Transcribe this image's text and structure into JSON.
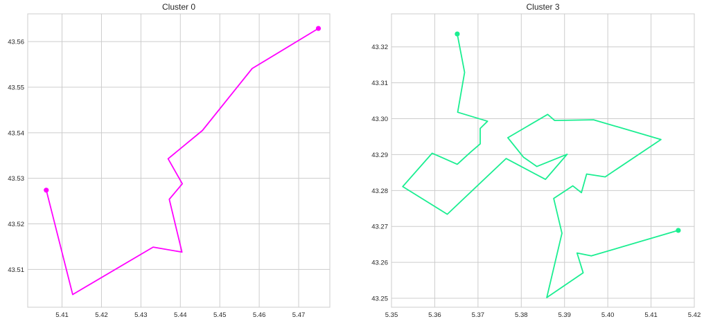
{
  "chart_data": [
    {
      "type": "line",
      "title": "Cluster 0",
      "xlabel": "",
      "ylabel": "",
      "color": "#ff00ff",
      "grid": true,
      "xlim": [
        5.4013,
        5.4779
      ],
      "ylim": [
        43.5017,
        43.5661
      ],
      "xticks": [
        5.41,
        5.42,
        5.43,
        5.44,
        5.45,
        5.46,
        5.47
      ],
      "yticks": [
        43.51,
        43.52,
        43.53,
        43.54,
        43.55,
        43.56
      ],
      "xtick_labels": [
        "5.41",
        "5.42",
        "5.43",
        "5.44",
        "5.45",
        "5.46",
        "5.47"
      ],
      "ytick_labels": [
        "43.51",
        "43.52",
        "43.53",
        "43.54",
        "43.55",
        "43.56"
      ],
      "x": [
        5.406,
        5.4127,
        5.4331,
        5.4404,
        5.4372,
        5.4405,
        5.4369,
        5.4456,
        5.4582,
        5.475
      ],
      "y": [
        43.5274,
        43.5045,
        43.5149,
        43.5138,
        43.5254,
        43.5288,
        43.5343,
        43.5405,
        43.5541,
        43.5629
      ],
      "markers": [
        {
          "x": 5.406,
          "y": 43.5274
        },
        {
          "x": 5.475,
          "y": 43.5629
        }
      ]
    },
    {
      "type": "line",
      "title": "Cluster 3",
      "xlabel": "",
      "ylabel": "",
      "color": "#1aee91",
      "grid": true,
      "xlim": [
        5.35,
        5.42
      ],
      "ylim": [
        43.2475,
        43.3292
      ],
      "xticks": [
        5.35,
        5.36,
        5.37,
        5.38,
        5.39,
        5.4,
        5.41,
        5.42
      ],
      "yticks": [
        43.25,
        43.26,
        43.27,
        43.28,
        43.29,
        43.3,
        43.31,
        43.32
      ],
      "xtick_labels": [
        "5.35",
        "5.36",
        "5.37",
        "5.38",
        "5.39",
        "5.40",
        "5.41",
        "5.42"
      ],
      "ytick_labels": [
        "43.25",
        "43.26",
        "43.27",
        "43.28",
        "43.29",
        "43.30",
        "43.31",
        "43.32"
      ],
      "x": [
        5.3652,
        5.3669,
        5.3653,
        5.3722,
        5.3705,
        5.3705,
        5.3683,
        5.3652,
        5.3594,
        5.3526,
        5.3629,
        5.3765,
        5.3856,
        5.3906,
        5.3836,
        5.3805,
        5.3769,
        5.3861,
        5.3877,
        5.3967,
        5.4123,
        5.3994,
        5.3951,
        5.3939,
        5.3919,
        5.3875,
        5.3894,
        5.3859,
        5.3943,
        5.3929,
        5.3962,
        5.4163
      ],
      "y": [
        43.3236,
        43.3129,
        43.3018,
        43.2993,
        43.2973,
        43.293,
        43.2907,
        43.2873,
        43.2904,
        43.2811,
        43.2734,
        43.2889,
        43.2831,
        43.2901,
        43.2867,
        43.2893,
        43.2947,
        43.3012,
        43.2995,
        43.2997,
        43.2942,
        43.2838,
        43.2846,
        43.2794,
        43.2813,
        43.2778,
        43.2681,
        43.2502,
        43.2571,
        43.2626,
        43.2618,
        43.2689
      ],
      "markers": [
        {
          "x": 5.3652,
          "y": 43.3236
        },
        {
          "x": 5.4163,
          "y": 43.2689
        }
      ]
    }
  ]
}
